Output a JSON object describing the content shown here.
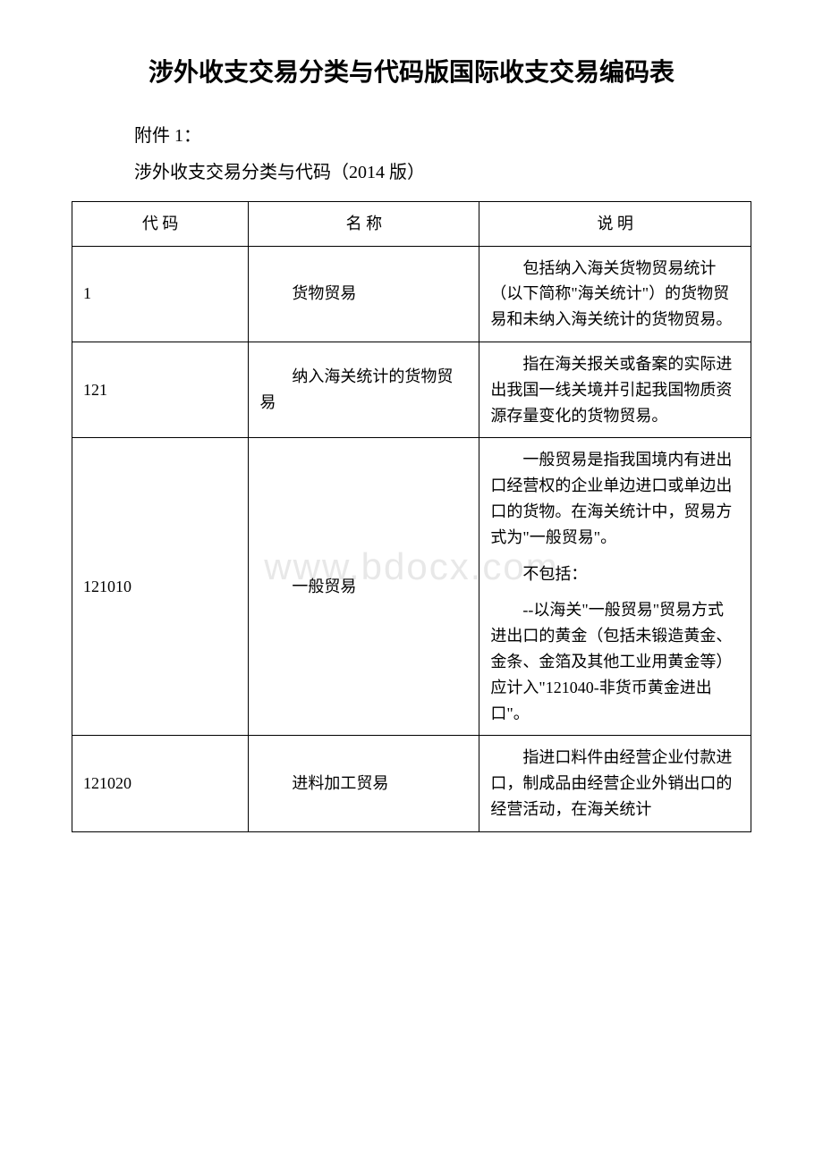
{
  "title": "涉外收支交易分类与代码版国际收支交易编码表",
  "attachment": "附件 1：",
  "subtitle": "涉外收支交易分类与代码（2014 版）",
  "watermark": "www.bdocx.com",
  "table": {
    "headers": {
      "code": "代 码",
      "name": "名 称",
      "description": "说 明"
    },
    "columns": [
      "code",
      "name",
      "description"
    ],
    "column_widths_pct": [
      26,
      34,
      40
    ],
    "border_color": "#000000",
    "text_color": "#000000",
    "font_size_pt": 14,
    "rows": [
      {
        "code": "1",
        "name": "货物贸易",
        "description_paragraphs": [
          "包括纳入海关货物贸易统计（以下简称\"海关统计\"）的货物贸易和未纳入海关统计的货物贸易。"
        ]
      },
      {
        "code": "121",
        "name": "纳入海关统计的货物贸易",
        "description_paragraphs": [
          "指在海关报关或备案的实际进出我国一线关境并引起我国物质资源存量变化的货物贸易。"
        ]
      },
      {
        "code": "121010",
        "name": "一般贸易",
        "description_paragraphs": [
          "一般贸易是指我国境内有进出口经营权的企业单边进口或单边出口的货物。在海关统计中，贸易方式为\"一般贸易\"。",
          "不包括：",
          "--以海关\"一般贸易\"贸易方式进出口的黄金（包括未锻造黄金、金条、金箔及其他工业用黄金等）应计入\"121040-非货币黄金进出口\"。"
        ]
      },
      {
        "code": "121020",
        "name": "进料加工贸易",
        "description_paragraphs": [
          "指进口料件由经营企业付款进口，制成品由经营企业外销出口的经营活动，在海关统计"
        ]
      }
    ]
  },
  "styling": {
    "page_background": "#ffffff",
    "title_fontsize_pt": 21,
    "title_fontweight": "bold",
    "body_fontsize_pt": 15,
    "watermark_color": "#e8e8e8",
    "watermark_fontsize_pt": 32,
    "font_family": "SimSun"
  }
}
